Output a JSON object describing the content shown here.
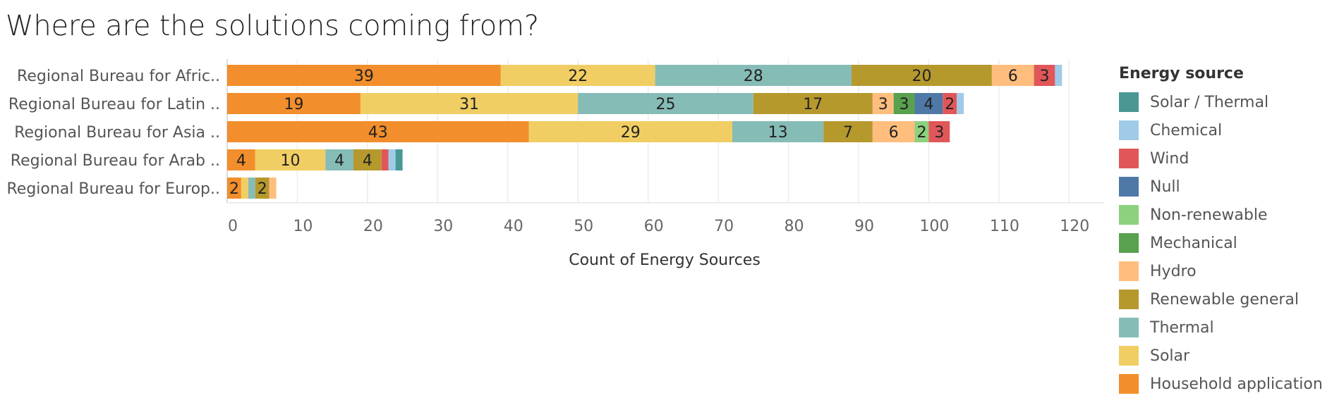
{
  "title": "Where are the solutions coming from?",
  "chart_data": {
    "type": "bar",
    "orientation": "horizontal",
    "stacked": true,
    "categories": [
      "Regional Bureau for Afric..",
      "Regional Bureau for Latin ..",
      "Regional Bureau for Asia ..",
      "Regional Bureau for Arab ..",
      "Regional Bureau for Europ.."
    ],
    "series": [
      {
        "name": "Household application",
        "color": "#f28e2b",
        "values": [
          39,
          19,
          43,
          4,
          2
        ]
      },
      {
        "name": "Solar",
        "color": "#f1ce63",
        "values": [
          22,
          31,
          29,
          10,
          1
        ]
      },
      {
        "name": "Thermal",
        "color": "#86bcb6",
        "values": [
          28,
          25,
          13,
          4,
          1
        ]
      },
      {
        "name": "Renewable general",
        "color": "#b6992d",
        "values": [
          20,
          17,
          7,
          4,
          2
        ]
      },
      {
        "name": "Hydro",
        "color": "#ffbe7d",
        "values": [
          6,
          3,
          6,
          0,
          1
        ]
      },
      {
        "name": "Mechanical",
        "color": "#59a14f",
        "values": [
          0,
          3,
          0,
          0,
          0
        ]
      },
      {
        "name": "Non-renewable",
        "color": "#8cd17d",
        "values": [
          0,
          0,
          2,
          0,
          0
        ]
      },
      {
        "name": "Null",
        "color": "#4e79a7",
        "values": [
          0,
          4,
          0,
          0,
          0
        ]
      },
      {
        "name": "Wind",
        "color": "#e15759",
        "values": [
          3,
          2,
          3,
          1,
          0
        ]
      },
      {
        "name": "Chemical",
        "color": "#a0cbe8",
        "values": [
          1,
          1,
          0,
          1,
          0
        ]
      },
      {
        "name": "Solar / Thermal",
        "color": "#499894",
        "values": [
          0,
          0,
          0,
          1,
          0
        ]
      }
    ],
    "xlabel": "Count of Energy Sources",
    "xlim": [
      0,
      125
    ],
    "xticks": [
      0,
      10,
      20,
      30,
      40,
      50,
      60,
      70,
      80,
      90,
      100,
      110,
      120
    ],
    "grid": true,
    "legend_position": "right"
  },
  "legend": {
    "title": "Energy source",
    "items": [
      {
        "label": "Solar / Thermal",
        "color": "#499894"
      },
      {
        "label": "Chemical",
        "color": "#a0cbe8"
      },
      {
        "label": "Wind",
        "color": "#e15759"
      },
      {
        "label": "Null",
        "color": "#4e79a7"
      },
      {
        "label": "Non-renewable",
        "color": "#8cd17d"
      },
      {
        "label": "Mechanical",
        "color": "#59a14f"
      },
      {
        "label": "Hydro",
        "color": "#ffbe7d"
      },
      {
        "label": "Renewable general",
        "color": "#b6992d"
      },
      {
        "label": "Thermal",
        "color": "#86bcb6"
      },
      {
        "label": "Solar",
        "color": "#f1ce63"
      },
      {
        "label": "Household application",
        "color": "#f28e2b"
      }
    ]
  }
}
